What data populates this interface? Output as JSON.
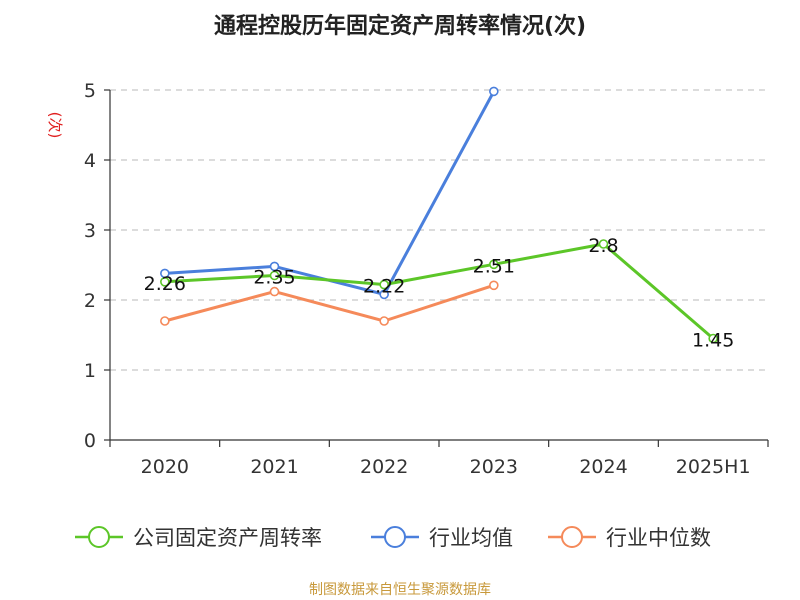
{
  "chart_data": {
    "type": "line",
    "title": "通程控股历年固定资产周转率情况(次)",
    "ylabel": "(次)",
    "xlabel": "",
    "categories": [
      "2020",
      "2021",
      "2022",
      "2023",
      "2024",
      "2025H1"
    ],
    "ylim": [
      0,
      5
    ],
    "yticks": [
      0,
      1,
      2,
      3,
      4,
      5
    ],
    "grid": true,
    "legend_position": "bottom",
    "series": [
      {
        "name": "公司固定资产周转率",
        "color": "#5cc628",
        "values": [
          2.26,
          2.35,
          2.22,
          2.51,
          2.8,
          1.45
        ],
        "labels": [
          "2.26",
          "2.35",
          "2.22",
          "2.51",
          "2.8",
          "1.45"
        ]
      },
      {
        "name": "行业均值",
        "color": "#4a7fdc",
        "values": [
          2.38,
          2.48,
          2.08,
          4.98,
          null,
          null
        ]
      },
      {
        "name": "行业中位数",
        "color": "#f58a5a",
        "values": [
          1.7,
          2.12,
          1.7,
          2.21,
          null,
          null
        ]
      }
    ]
  },
  "source": "制图数据来自恒生聚源数据库"
}
